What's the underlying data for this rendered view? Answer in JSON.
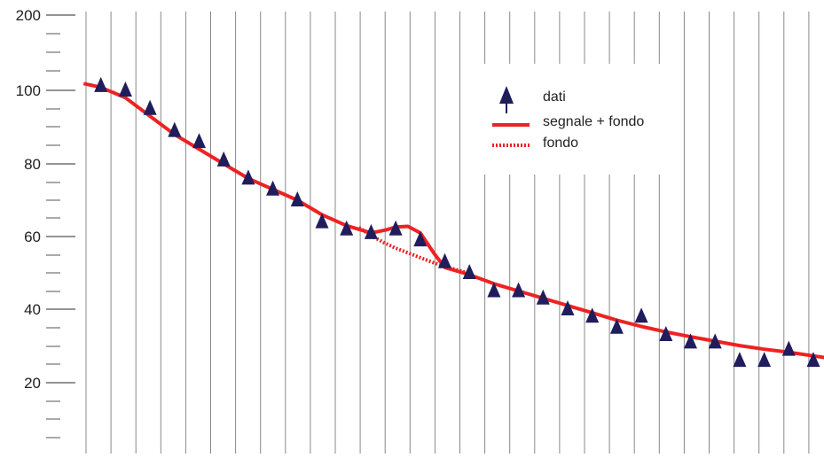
{
  "chart_data": {
    "type": "scatter",
    "title": "",
    "xlabel": "",
    "ylabel": "",
    "ylim": [
      0,
      200
    ],
    "y_axis_note": "non-linear scale: labeled ticks at 20,40,60,80,100 and 200 at top",
    "y_ticks": [
      {
        "value": 200,
        "label": "200"
      },
      {
        "value": 100,
        "label": "100"
      },
      {
        "value": 80,
        "label": "80"
      },
      {
        "value": 60,
        "label": "60"
      },
      {
        "value": 40,
        "label": "40"
      },
      {
        "value": 20,
        "label": "20"
      }
    ],
    "x_bins": 30,
    "grid": "vertical lines",
    "legend": {
      "position": "top-right",
      "entries": [
        {
          "name": "dati",
          "marker": "triangle",
          "color": "#1f1d5c"
        },
        {
          "name": "segnale + fondo",
          "line": "solid",
          "color": "#ee2222"
        },
        {
          "name": "fondo",
          "line": "dotted",
          "color": "#ee2222"
        }
      ]
    },
    "series": [
      {
        "name": "dati",
        "x": [
          1,
          2,
          3,
          4,
          5,
          6,
          7,
          8,
          9,
          10,
          11,
          12,
          13,
          14,
          15,
          16,
          17,
          18,
          19,
          20,
          21,
          22,
          23,
          24,
          25,
          26,
          27,
          28,
          29,
          30
        ],
        "values": [
          106,
          100,
          95,
          89,
          86,
          81,
          76,
          73,
          70,
          64,
          62,
          61,
          62,
          59,
          53,
          50,
          45,
          45,
          43,
          40,
          38,
          35,
          38,
          33,
          31,
          31,
          26,
          26,
          29,
          26
        ]
      },
      {
        "name": "segnale + fondo",
        "type": "line",
        "x": [
          0.3,
          1,
          2,
          3,
          4,
          5,
          6,
          7,
          8,
          9,
          10,
          11,
          12,
          12.6,
          13,
          13.5,
          14,
          14.6,
          15,
          16,
          17,
          18,
          19,
          20,
          21,
          22,
          23,
          24,
          25,
          26,
          27,
          28,
          29,
          30.5
        ],
        "values": [
          109,
          104,
          98,
          93,
          88,
          84,
          80,
          76,
          73,
          70,
          66,
          63,
          61,
          61.8,
          62.6,
          62.8,
          61,
          55,
          51.5,
          49.5,
          47,
          45,
          43,
          41,
          39,
          37,
          35.3,
          33.8,
          32.5,
          31.3,
          30.1,
          29.1,
          28.3,
          26.8
        ]
      },
      {
        "name": "fondo",
        "type": "line",
        "dash": "dotted",
        "x": [
          11.5,
          12,
          12.5,
          13,
          13.5,
          14,
          14.5,
          15,
          15.5,
          16
        ],
        "values": [
          62.5,
          60.3,
          58.4,
          56.8,
          55.5,
          54.2,
          52.9,
          51.8,
          50.8,
          49.8
        ]
      }
    ],
    "colors": {
      "data": "#1f1d5c",
      "fit": "#ee2222",
      "grid": "#888888"
    }
  }
}
